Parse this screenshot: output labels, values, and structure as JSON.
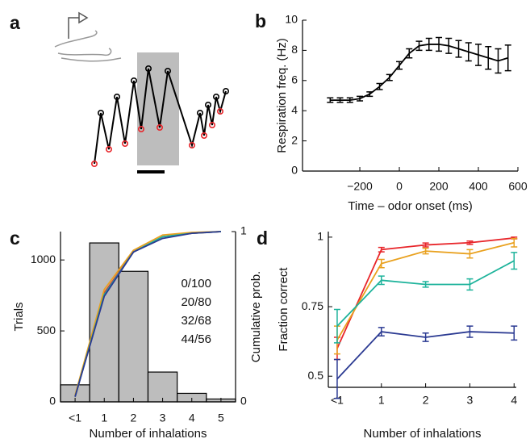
{
  "chart_data": [
    {
      "type": "illustration",
      "panel": "a"
    },
    {
      "type": "errorline",
      "panel": "b",
      "xlabel": "Time – odor onset (ms)",
      "ylabel": "Respiration freq. (Hz)",
      "x": [
        -350,
        -300,
        -250,
        -200,
        -150,
        -100,
        -50,
        0,
        50,
        100,
        150,
        200,
        250,
        300,
        350,
        400,
        450,
        500,
        550
      ],
      "series": [
        {
          "color": "#000000",
          "values": [
            4.7,
            4.7,
            4.7,
            4.8,
            5.1,
            5.6,
            6.2,
            7.0,
            7.8,
            8.3,
            8.4,
            8.4,
            8.3,
            8.1,
            7.9,
            7.7,
            7.5,
            7.3,
            7.5
          ],
          "errors": [
            0.15,
            0.15,
            0.15,
            0.15,
            0.15,
            0.2,
            0.2,
            0.25,
            0.3,
            0.3,
            0.4,
            0.45,
            0.5,
            0.55,
            0.6,
            0.7,
            0.75,
            0.8,
            0.85
          ]
        }
      ],
      "xlim": [
        -490,
        600
      ],
      "xticks": [
        {
          "value": -200,
          "label": "−200"
        },
        0,
        200,
        400,
        600
      ],
      "ylim": [
        0,
        10
      ],
      "yticks": [
        0,
        2,
        4,
        6,
        8,
        10
      ]
    },
    {
      "type": "histogram",
      "panel": "c",
      "xlabel": "Number of inhalations",
      "ylabel": "Trials",
      "y2label": "Cumulative prob.",
      "bins": [
        -0.5,
        0.5,
        1.5,
        2.5,
        3.5,
        4.5,
        5.5
      ],
      "counts": [
        120,
        1120,
        920,
        210,
        60,
        20
      ],
      "bar_color": "#bdbdbd",
      "xlim": [
        -0.5,
        5.5
      ],
      "xticks": [
        {
          "value": 0,
          "label": "<1"
        },
        1,
        2,
        3,
        4,
        5
      ],
      "ylim": [
        0,
        1200
      ],
      "yticks": [
        0,
        500,
        1000
      ],
      "y2lim": [
        0,
        1
      ],
      "y2ticks": [
        0,
        1
      ],
      "x": [
        0,
        1,
        2,
        3,
        4,
        5
      ],
      "series": [
        {
          "name": "0/100",
          "color": "#e8262b",
          "axis": "y2",
          "values": [
            0.03,
            0.64,
            0.88,
            0.97,
            0.99,
            1.0
          ]
        },
        {
          "name": "20/80",
          "color": "#e9a11f",
          "axis": "y2",
          "values": [
            0.04,
            0.66,
            0.89,
            0.98,
            0.995,
            1.0
          ]
        },
        {
          "name": "32/68",
          "color": "#1db39b",
          "axis": "y2",
          "values": [
            0.03,
            0.63,
            0.88,
            0.97,
            0.99,
            1.0
          ]
        },
        {
          "name": "44/56",
          "color": "#2b3a92",
          "axis": "y2",
          "values": [
            0.03,
            0.62,
            0.88,
            0.96,
            0.99,
            1.0
          ]
        }
      ]
    },
    {
      "type": "errorline",
      "panel": "d",
      "xlabel": "Number of inhalations",
      "ylabel": "Fraction correct",
      "x": [
        0,
        1,
        2,
        3,
        4
      ],
      "series": [
        {
          "color": "#e8262b",
          "values": [
            0.6,
            0.955,
            0.972,
            0.98,
            0.997
          ],
          "errors": [
            0.04,
            0.008,
            0.007,
            0.006,
            0.003
          ]
        },
        {
          "color": "#e9a11f",
          "values": [
            0.63,
            0.905,
            0.95,
            0.94,
            0.98
          ],
          "errors": [
            0.05,
            0.015,
            0.01,
            0.015,
            0.015
          ]
        },
        {
          "color": "#1db39b",
          "values": [
            0.68,
            0.845,
            0.83,
            0.83,
            0.915
          ],
          "errors": [
            0.06,
            0.015,
            0.01,
            0.02,
            0.03
          ]
        },
        {
          "color": "#2b3a92",
          "values": [
            0.49,
            0.66,
            0.64,
            0.66,
            0.655
          ],
          "errors": [
            0.07,
            0.015,
            0.015,
            0.02,
            0.025
          ]
        }
      ],
      "xlim": [
        -0.2,
        4.05
      ],
      "xticks": [
        {
          "value": 0,
          "label": "<1"
        },
        1,
        2,
        3,
        4
      ],
      "ylim": [
        0.46,
        1.02
      ],
      "yticks": [
        0.5,
        0.75,
        1
      ]
    }
  ]
}
